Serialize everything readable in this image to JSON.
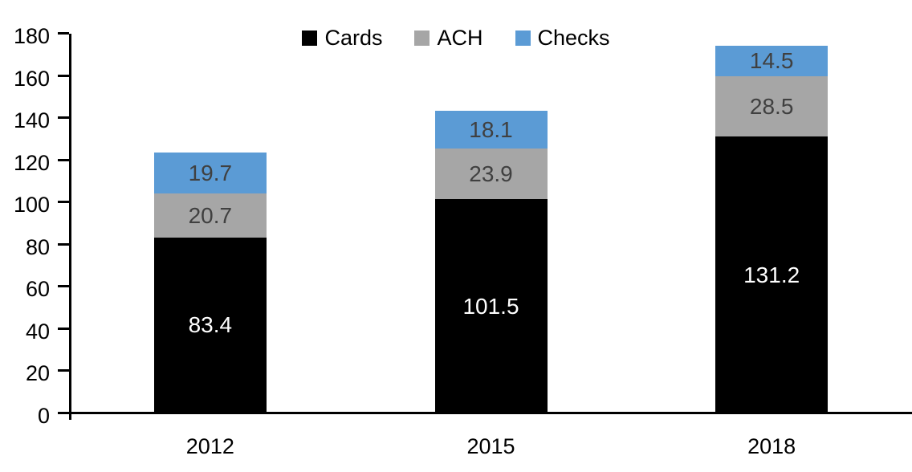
{
  "chart_data": {
    "type": "bar",
    "stacked": true,
    "title": "",
    "xlabel": "",
    "ylabel": "",
    "categories": [
      "2012",
      "2015",
      "2018"
    ],
    "series": [
      {
        "name": "Cards",
        "color": "#000000",
        "label_color": "#ffffff",
        "values": [
          83.4,
          101.5,
          131.2
        ]
      },
      {
        "name": "ACH",
        "color": "#a6a6a6",
        "label_color": "#404040",
        "values": [
          20.7,
          23.9,
          28.5
        ]
      },
      {
        "name": "Checks",
        "color": "#5b9bd5",
        "label_color": "#404040",
        "values": [
          19.7,
          18.1,
          14.5
        ]
      }
    ],
    "ylim": [
      0,
      180
    ],
    "ytick_step": 20,
    "ytick_labels": [
      "0",
      "20",
      "40",
      "60",
      "80",
      "100",
      "120",
      "140",
      "160",
      "180"
    ],
    "segment_value_labels": true,
    "legend_position": "top-center",
    "grid": false
  },
  "colors": {
    "axis": "#000000",
    "background": "#ffffff"
  }
}
